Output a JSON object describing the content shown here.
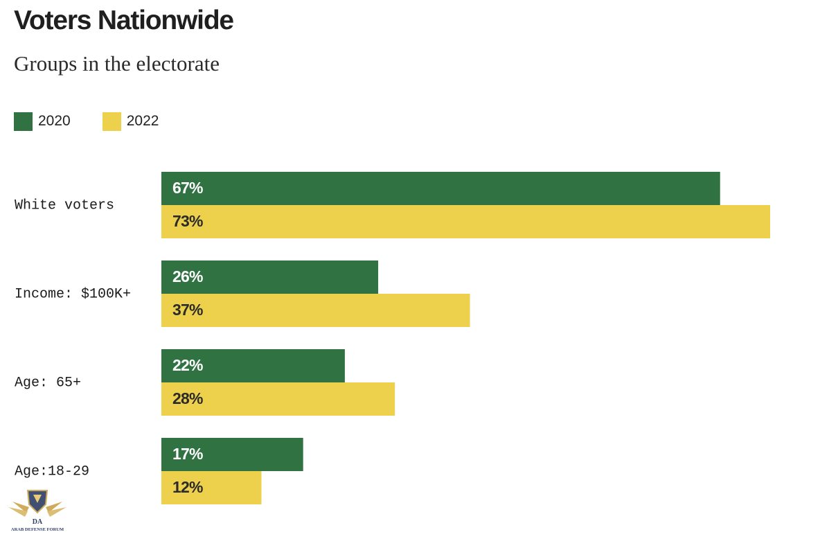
{
  "chart_data": {
    "type": "bar",
    "orientation": "horizontal",
    "title": "Voters Nationwide",
    "subtitle": "Groups in the electorate",
    "categories": [
      "White voters",
      "Income: $100K+",
      "Age: 65+",
      "Age:18-29"
    ],
    "series": [
      {
        "name": "2020",
        "color": "#317243",
        "label_color": "#ffffff",
        "values": [
          67,
          26,
          22,
          17
        ],
        "labels": [
          "67%",
          "26%",
          "22%",
          "17%"
        ]
      },
      {
        "name": "2022",
        "color": "#edd04b",
        "label_color": "#2b2b2b",
        "values": [
          73,
          37,
          28,
          12
        ],
        "labels": [
          "73%",
          "37%",
          "28%",
          "12%"
        ]
      }
    ],
    "legend_position": "top-left",
    "grid": false,
    "xlim": [
      0,
      73
    ]
  },
  "watermark": {
    "text": "ARAB DEFENSE FORUM",
    "monogram": "DA",
    "icon": "shield-wings-logo-icon"
  }
}
